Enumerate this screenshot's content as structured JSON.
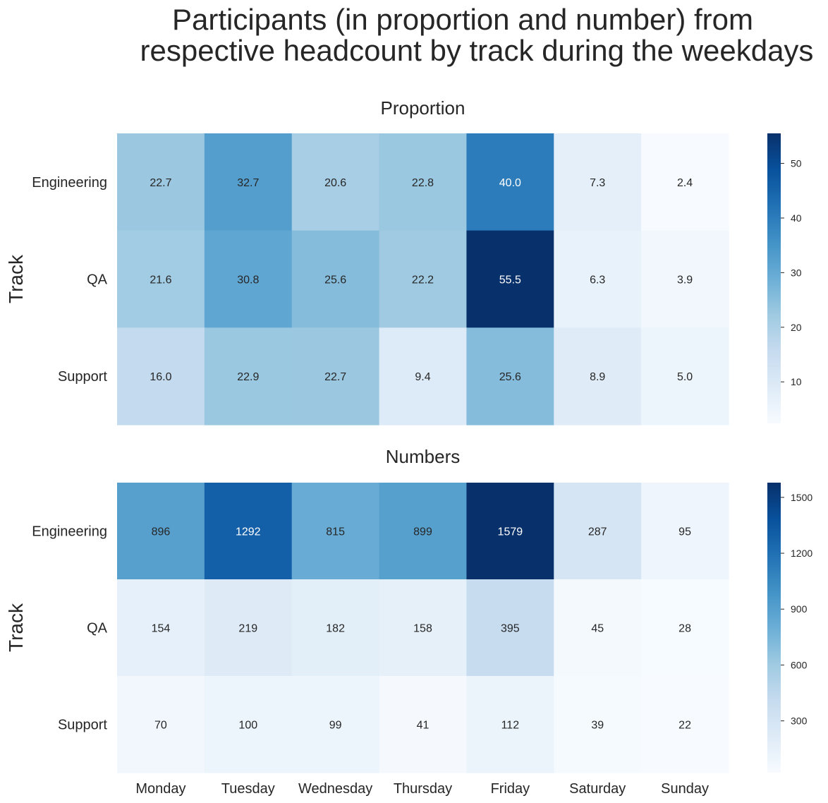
{
  "chart_data": {
    "type": "heatmap",
    "title": "Participants (in proportion and number) from respective headcount by track during the weekdays",
    "title_lines": [
      "Participants (in proportion and number) from",
      "respective headcount by track during the weekdays"
    ],
    "colormap": "Blues",
    "panels": [
      {
        "name": "proportion",
        "title": "Proportion",
        "ylabel": "Track",
        "rows": [
          "Engineering",
          "QA",
          "Support"
        ],
        "columns": [
          "Monday",
          "Tuesday",
          "Wednesday",
          "Thursday",
          "Friday",
          "Saturday",
          "Sunday"
        ],
        "show_column_labels": false,
        "values": [
          [
            22.7,
            32.7,
            20.6,
            22.8,
            40.0,
            7.3,
            2.4
          ],
          [
            21.6,
            30.8,
            25.6,
            22.2,
            55.5,
            6.3,
            3.9
          ],
          [
            16.0,
            22.9,
            22.7,
            9.4,
            25.6,
            8.9,
            5.0
          ]
        ],
        "labels": [
          [
            "22.7",
            "32.7",
            "20.6",
            "22.8",
            "40.0",
            "7.3",
            "2.4"
          ],
          [
            "21.6",
            "30.8",
            "25.6",
            "22.2",
            "55.5",
            "6.3",
            "3.9"
          ],
          [
            "16.0",
            "22.9",
            "22.7",
            "9.4",
            "25.6",
            "8.9",
            "5.0"
          ]
        ],
        "vmin": 2.4,
        "vmax": 55.5,
        "colorbar_ticks": [
          10,
          20,
          30,
          40,
          50
        ],
        "colorbar_tick_labels": [
          "10",
          "20",
          "30",
          "40",
          "50"
        ]
      },
      {
        "name": "numbers",
        "title": "Numbers",
        "ylabel": "Track",
        "rows": [
          "Engineering",
          "QA",
          "Support"
        ],
        "columns": [
          "Monday",
          "Tuesday",
          "Wednesday",
          "Thursday",
          "Friday",
          "Saturday",
          "Sunday"
        ],
        "show_column_labels": true,
        "values": [
          [
            896,
            1292,
            815,
            899,
            1579,
            287,
            95
          ],
          [
            154,
            219,
            182,
            158,
            395,
            45,
            28
          ],
          [
            70,
            100,
            99,
            41,
            112,
            39,
            22
          ]
        ],
        "labels": [
          [
            "896",
            "1292",
            "815",
            "899",
            "1579",
            "287",
            "95"
          ],
          [
            "154",
            "219",
            "182",
            "158",
            "395",
            "45",
            "28"
          ],
          [
            "70",
            "100",
            "99",
            "41",
            "112",
            "39",
            "22"
          ]
        ],
        "vmin": 22,
        "vmax": 1579,
        "colorbar_ticks": [
          300,
          600,
          900,
          1200,
          1500
        ],
        "colorbar_tick_labels": [
          "300",
          "600",
          "900",
          "1200",
          "1500"
        ]
      }
    ]
  }
}
